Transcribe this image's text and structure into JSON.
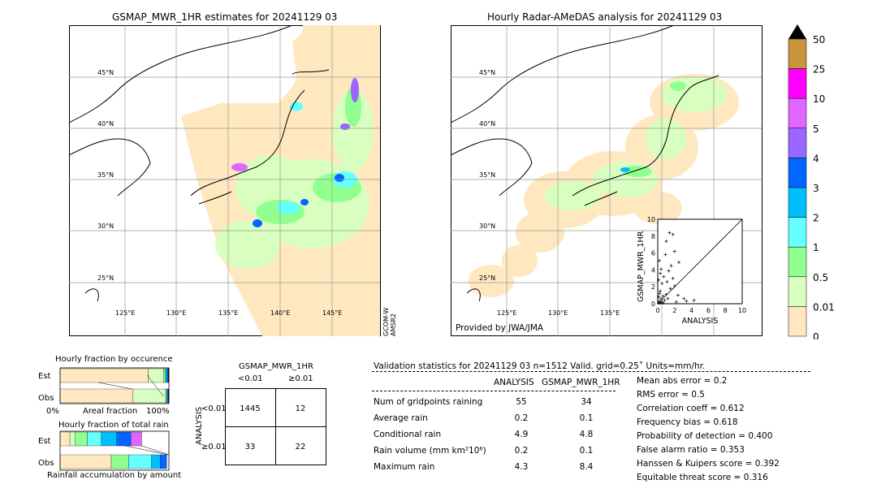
{
  "left_map": {
    "title": "GSMAP_MWR_1HR estimates for 20241129 03",
    "lat_labels": [
      "45°N",
      "40°N",
      "35°N",
      "30°N",
      "25°N"
    ],
    "lon_labels": [
      "125°E",
      "130°E",
      "135°E",
      "140°E",
      "145°E"
    ],
    "side_label_1": "GCOM-W",
    "side_label_2": "AMSR2"
  },
  "right_map": {
    "title": "Hourly Radar-AMeDAS analysis for 20241129 03",
    "lat_labels": [
      "45°N",
      "40°N",
      "35°N",
      "30°N",
      "25°N"
    ],
    "lon_labels": [
      "125°E",
      "130°E",
      "135°E"
    ],
    "credit": "Provided by JWA/JMA"
  },
  "colorbar": {
    "labels": [
      "50",
      "25",
      "10",
      "5",
      "4",
      "3",
      "2",
      "1",
      "0.5",
      "0.01",
      "0"
    ],
    "colors": [
      "#c8963c",
      "#ff00ff",
      "#e066ff",
      "#9966ff",
      "#0066ff",
      "#00bfff",
      "#66ffff",
      "#90ff90",
      "#d8ffc0",
      "#ffe8c0"
    ],
    "over_color": "#000000"
  },
  "chart_data": [
    {
      "type": "scatter",
      "title": "",
      "xlabel": "ANALYSIS",
      "ylabel": "GSMAP_MWR_1HR",
      "xlim": [
        0,
        10
      ],
      "ylim": [
        0,
        10
      ],
      "ticks": [
        "0",
        "2",
        "4",
        "6",
        "8",
        "10"
      ],
      "points": [
        [
          0.1,
          0.1
        ],
        [
          0.2,
          0.3
        ],
        [
          0.3,
          0.1
        ],
        [
          0.4,
          0.6
        ],
        [
          0.5,
          0.2
        ],
        [
          0.1,
          0.8
        ],
        [
          0.2,
          1.2
        ],
        [
          0.3,
          1.5
        ],
        [
          0.6,
          0.9
        ],
        [
          0.8,
          0.4
        ],
        [
          1.0,
          1.1
        ],
        [
          1.2,
          0.6
        ],
        [
          1.5,
          1.8
        ],
        [
          0.5,
          2.4
        ],
        [
          0.7,
          3.2
        ],
        [
          0.4,
          4.1
        ],
        [
          1.8,
          3.0
        ],
        [
          2.0,
          2.1
        ],
        [
          2.4,
          1.0
        ],
        [
          3.1,
          0.6
        ],
        [
          3.4,
          0.3
        ],
        [
          4.3,
          0.4
        ],
        [
          1.4,
          8.4
        ],
        [
          1.8,
          8.2
        ],
        [
          1.0,
          7.4
        ],
        [
          2.0,
          6.2
        ],
        [
          0.2,
          5.1
        ],
        [
          2.5,
          4.9
        ],
        [
          1.6,
          4.5
        ],
        [
          0.9,
          5.8
        ],
        [
          0.1,
          2.8
        ],
        [
          0.3,
          3.6
        ],
        [
          1.1,
          2.6
        ],
        [
          1.3,
          3.9
        ],
        [
          2.2,
          0.2
        ],
        [
          0.6,
          0.1
        ]
      ]
    },
    {
      "type": "bar",
      "title": "Hourly fraction by occurence",
      "categories": [
        "Est",
        "Obs"
      ],
      "xlabel": "Areal fraction",
      "x_tick_left": "0%",
      "x_tick_right": "100%",
      "series": [
        {
          "values": [
            0.81,
            0.67
          ]
        },
        {
          "values": [
            0.14,
            0.3
          ]
        },
        {
          "values": [
            0.02,
            0.01
          ]
        },
        {
          "values": [
            0.015,
            0.01
          ]
        },
        {
          "values": [
            0.01,
            0.005
          ]
        },
        {
          "values": [
            0.005,
            0.005
          ]
        }
      ]
    },
    {
      "type": "bar",
      "title": "Hourly fraction of total rain",
      "categories": [
        "Est",
        "Obs"
      ],
      "xlabel": "Rainfall accumulation by amount",
      "series": [
        {
          "values": [
            0.09,
            0.47
          ]
        },
        {
          "values": [
            0.05,
            0.0
          ]
        },
        {
          "values": [
            0.11,
            0.16
          ]
        },
        {
          "values": [
            0.13,
            0.21
          ]
        },
        {
          "values": [
            0.14,
            0.08
          ]
        },
        {
          "values": [
            0.13,
            0.06
          ]
        },
        {
          "values": [
            0.1,
            0.0
          ]
        }
      ],
      "colors": [
        "#ffe8c0",
        "#d8ffc0",
        "#90ff90",
        "#66ffff",
        "#00bfff",
        "#0066ff",
        "#e066ff"
      ]
    },
    {
      "type": "table",
      "title": "GSMAP_MWR_1HR",
      "col_labels": [
        "<0.01",
        "≥0.01"
      ],
      "row_axis_label": "ANALYSIS",
      "row_labels": [
        "<0.01",
        "≥0.01"
      ],
      "cells": [
        [
          "1445",
          "12"
        ],
        [
          "33",
          "22"
        ]
      ]
    }
  ],
  "validation": {
    "header": "Validation statistics for 20241129 03  n=1512 Valid. grid=0.25˚ Units=mm/hr.",
    "col_analysis": "ANALYSIS",
    "col_gsmap": "GSMAP_MWR_1HR",
    "rows": [
      {
        "label": "Num of gridpoints raining",
        "a": "55",
        "g": "34"
      },
      {
        "label": "Average rain",
        "a": "0.2",
        "g": "0.1"
      },
      {
        "label": "Conditional rain",
        "a": "4.9",
        "g": "4.8"
      },
      {
        "label": "Rain volume (mm km²10⁶)",
        "a": "0.2",
        "g": "0.1"
      },
      {
        "label": "Maximum rain",
        "a": "4.3",
        "g": "8.4"
      }
    ],
    "scores": [
      "Mean abs error =    0.2",
      "RMS error =    0.5",
      "Correlation coeff =  0.612",
      "Frequency bias =  0.618",
      "Probability of detection =  0.400",
      "False alarm ratio =  0.353",
      "Hanssen & Kuipers score =  0.392",
      "Equitable threat score =  0.316"
    ]
  }
}
